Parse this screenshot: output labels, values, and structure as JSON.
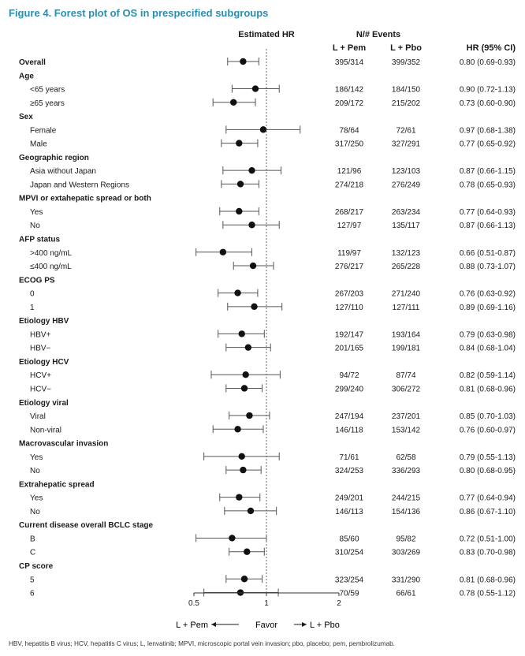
{
  "figure_title": "Figure 4. Forest plot of OS in prespecified subgroups",
  "headers": {
    "estimated_hr": "Estimated HR",
    "events": "N/# Events",
    "arm1": "L + Pem",
    "arm2": "L + Pbo",
    "hr_ci": "HR (95% CI)"
  },
  "chart_data": {
    "type": "forest",
    "x_scale": "log",
    "xlim": [
      0.5,
      2
    ],
    "x_ticks": [
      "0.5",
      "1",
      "2"
    ],
    "x_tick_values": [
      0.5,
      1,
      2
    ],
    "reference_line": 1,
    "favor_left": "L + Pem",
    "favor_center": "Favor",
    "favor_right": "L + Pbo",
    "rows": [
      {
        "type": "sub",
        "label": "Overall",
        "bold": true,
        "est": 0.8,
        "lo": 0.69,
        "hi": 0.93,
        "n1": "395/314",
        "n2": "399/352",
        "ci": "0.80 (0.69-0.93)"
      },
      {
        "type": "header",
        "label": "Age"
      },
      {
        "type": "sub",
        "label": "<65 years",
        "est": 0.9,
        "lo": 0.72,
        "hi": 1.13,
        "n1": "186/142",
        "n2": "184/150",
        "ci": "0.90 (0.72-1.13)"
      },
      {
        "type": "sub",
        "label": "≥65 years",
        "est": 0.73,
        "lo": 0.6,
        "hi": 0.9,
        "n1": "209/172",
        "n2": "215/202",
        "ci": "0.73 (0.60-0.90)"
      },
      {
        "type": "header",
        "label": "Sex"
      },
      {
        "type": "sub",
        "label": "Female",
        "est": 0.97,
        "lo": 0.68,
        "hi": 1.38,
        "n1": "78/64",
        "n2": "72/61",
        "ci": "0.97 (0.68-1.38)"
      },
      {
        "type": "sub",
        "label": "Male",
        "est": 0.77,
        "lo": 0.65,
        "hi": 0.92,
        "n1": "317/250",
        "n2": "327/291",
        "ci": "0.77 (0.65-0.92)"
      },
      {
        "type": "header",
        "label": "Geographic region"
      },
      {
        "type": "sub",
        "label": "Asia without Japan",
        "est": 0.87,
        "lo": 0.66,
        "hi": 1.15,
        "n1": "121/96",
        "n2": "123/103",
        "ci": "0.87 (0.66-1.15)"
      },
      {
        "type": "sub",
        "label": "Japan and Western Regions",
        "est": 0.78,
        "lo": 0.65,
        "hi": 0.93,
        "n1": "274/218",
        "n2": "276/249",
        "ci": "0.78 (0.65-0.93)"
      },
      {
        "type": "header",
        "label": "MPVI or extahepatic spread or both"
      },
      {
        "type": "sub",
        "label": "Yes",
        "est": 0.77,
        "lo": 0.64,
        "hi": 0.93,
        "n1": "268/217",
        "n2": "263/234",
        "ci": "0.77 (0.64-0.93)"
      },
      {
        "type": "sub",
        "label": "No",
        "est": 0.87,
        "lo": 0.66,
        "hi": 1.13,
        "n1": "127/97",
        "n2": "135/117",
        "ci": "0.87 (0.66-1.13)"
      },
      {
        "type": "header",
        "label": "AFP status"
      },
      {
        "type": "sub",
        "label": ">400 ng/mL",
        "est": 0.66,
        "lo": 0.51,
        "hi": 0.87,
        "n1": "119/97",
        "n2": "132/123",
        "ci": "0.66 (0.51-0.87)"
      },
      {
        "type": "sub",
        "label": "≤400 ng/mL",
        "est": 0.88,
        "lo": 0.73,
        "hi": 1.07,
        "n1": "276/217",
        "n2": "265/228",
        "ci": "0.88 (0.73-1.07)"
      },
      {
        "type": "header",
        "label": "ECOG PS"
      },
      {
        "type": "sub",
        "label": "0",
        "est": 0.76,
        "lo": 0.63,
        "hi": 0.92,
        "n1": "267/203",
        "n2": "271/240",
        "ci": "0.76 (0.63-0.92)"
      },
      {
        "type": "sub",
        "label": "1",
        "est": 0.89,
        "lo": 0.69,
        "hi": 1.16,
        "n1": "127/110",
        "n2": "127/111",
        "ci": "0.89 (0.69-1.16)"
      },
      {
        "type": "header",
        "label": "Etiology HBV"
      },
      {
        "type": "sub",
        "label": "HBV+",
        "est": 0.79,
        "lo": 0.63,
        "hi": 0.98,
        "n1": "192/147",
        "n2": "193/164",
        "ci": "0.79 (0.63-0.98)"
      },
      {
        "type": "sub",
        "label": "HBV−",
        "est": 0.84,
        "lo": 0.68,
        "hi": 1.04,
        "n1": "201/165",
        "n2": "199/181",
        "ci": "0.84 (0.68-1.04)"
      },
      {
        "type": "header",
        "label": "Etiology HCV"
      },
      {
        "type": "sub",
        "label": "HCV+",
        "est": 0.82,
        "lo": 0.59,
        "hi": 1.14,
        "n1": "94/72",
        "n2": "87/74",
        "ci": "0.82 (0.59-1.14)"
      },
      {
        "type": "sub",
        "label": "HCV−",
        "est": 0.81,
        "lo": 0.68,
        "hi": 0.96,
        "n1": "299/240",
        "n2": "306/272",
        "ci": "0.81 (0.68-0.96)"
      },
      {
        "type": "header",
        "label": "Etiology viral"
      },
      {
        "type": "sub",
        "label": "Viral",
        "est": 0.85,
        "lo": 0.7,
        "hi": 1.03,
        "n1": "247/194",
        "n2": "237/201",
        "ci": "0.85 (0.70-1.03)"
      },
      {
        "type": "sub",
        "label": "Non-viral",
        "est": 0.76,
        "lo": 0.6,
        "hi": 0.97,
        "n1": "146/118",
        "n2": "153/142",
        "ci": "0.76 (0.60-0.97)"
      },
      {
        "type": "header",
        "label": "Macrovascular invasion"
      },
      {
        "type": "sub",
        "label": "Yes",
        "est": 0.79,
        "lo": 0.55,
        "hi": 1.13,
        "n1": "71/61",
        "n2": "62/58",
        "ci": "0.79 (0.55-1.13)"
      },
      {
        "type": "sub",
        "label": "No",
        "est": 0.8,
        "lo": 0.68,
        "hi": 0.95,
        "n1": "324/253",
        "n2": "336/293",
        "ci": "0.80 (0.68-0.95)"
      },
      {
        "type": "header",
        "label": "Extrahepatic spread"
      },
      {
        "type": "sub",
        "label": "Yes",
        "est": 0.77,
        "lo": 0.64,
        "hi": 0.94,
        "n1": "249/201",
        "n2": "244/215",
        "ci": "0.77 (0.64-0.94)"
      },
      {
        "type": "sub",
        "label": "No",
        "est": 0.86,
        "lo": 0.67,
        "hi": 1.1,
        "n1": "146/113",
        "n2": "154/136",
        "ci": "0.86 (0.67-1.10)"
      },
      {
        "type": "header",
        "label": "Current disease overall BCLC stage"
      },
      {
        "type": "sub",
        "label": "B",
        "est": 0.72,
        "lo": 0.51,
        "hi": 1.0,
        "n1": "85/60",
        "n2": "95/82",
        "ci": "0.72 (0.51-1.00)"
      },
      {
        "type": "sub",
        "label": "C",
        "est": 0.83,
        "lo": 0.7,
        "hi": 0.98,
        "n1": "310/254",
        "n2": "303/269",
        "ci": "0.83 (0.70-0.98)"
      },
      {
        "type": "header",
        "label": "CP score"
      },
      {
        "type": "sub",
        "label": "5",
        "est": 0.81,
        "lo": 0.68,
        "hi": 0.96,
        "n1": "323/254",
        "n2": "331/290",
        "ci": "0.81 (0.68-0.96)"
      },
      {
        "type": "sub",
        "label": "6",
        "est": 0.78,
        "lo": 0.55,
        "hi": 1.12,
        "n1": "70/59",
        "n2": "66/61",
        "ci": "0.78 (0.55-1.12)"
      }
    ]
  },
  "footnote": "HBV, hepatitis B virus; HCV, hepatitis C virus; L, lenvatinib; MPVI, microscopic portal vein invasion; pbo, placebo; pem, pembrolizumab."
}
